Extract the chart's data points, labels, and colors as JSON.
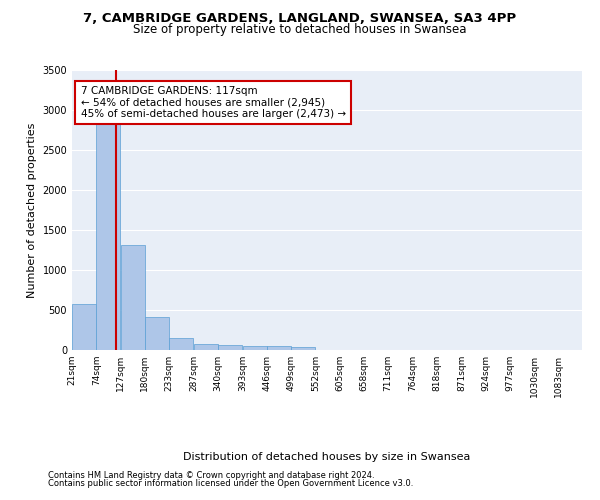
{
  "title1": "7, CAMBRIDGE GARDENS, LANGLAND, SWANSEA, SA3 4PP",
  "title2": "Size of property relative to detached houses in Swansea",
  "xlabel": "Distribution of detached houses by size in Swansea",
  "ylabel": "Number of detached properties",
  "footnote1": "Contains HM Land Registry data © Crown copyright and database right 2024.",
  "footnote2": "Contains public sector information licensed under the Open Government Licence v3.0.",
  "annotation_line1": "7 CAMBRIDGE GARDENS: 117sqm",
  "annotation_line2": "← 54% of detached houses are smaller (2,945)",
  "annotation_line3": "45% of semi-detached houses are larger (2,473) →",
  "property_size": 117,
  "bar_left_edges": [
    21,
    74,
    127,
    180,
    233,
    287,
    340,
    393,
    446,
    499,
    552,
    605,
    658,
    711,
    764,
    818,
    871,
    924,
    977,
    1030
  ],
  "bar_heights": [
    570,
    2920,
    1310,
    410,
    155,
    75,
    60,
    55,
    45,
    40,
    0,
    0,
    0,
    0,
    0,
    0,
    0,
    0,
    0,
    0
  ],
  "bin_width": 53,
  "bar_color": "#aec6e8",
  "bar_edge_color": "#5a9fd4",
  "vline_color": "#cc0000",
  "vline_x": 117,
  "tick_labels": [
    "21sqm",
    "74sqm",
    "127sqm",
    "180sqm",
    "233sqm",
    "287sqm",
    "340sqm",
    "393sqm",
    "446sqm",
    "499sqm",
    "552sqm",
    "605sqm",
    "658sqm",
    "711sqm",
    "764sqm",
    "818sqm",
    "871sqm",
    "924sqm",
    "977sqm",
    "1030sqm",
    "1083sqm"
  ],
  "ylim": [
    0,
    3500
  ],
  "yticks": [
    0,
    500,
    1000,
    1500,
    2000,
    2500,
    3000,
    3500
  ],
  "background_color": "#e8eef7",
  "grid_color": "#ffffff",
  "title1_fontsize": 9.5,
  "title2_fontsize": 8.5,
  "annotation_fontsize": 7.5,
  "axis_label_fontsize": 8,
  "tick_fontsize": 6.5,
  "footnote_fontsize": 6
}
